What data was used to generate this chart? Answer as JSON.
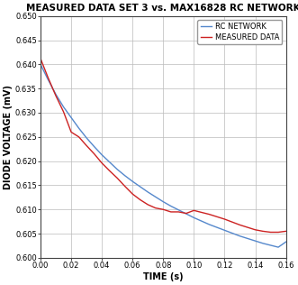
{
  "title": "MEASURED DATA SET 3 vs. MAX16828 RC NETWORK",
  "xlabel": "TIME (s)",
  "ylabel": "DIODE VOLTAGE (mV)",
  "xlim": [
    0,
    0.16
  ],
  "ylim": [
    0.6,
    0.65
  ],
  "xticks": [
    0.0,
    0.02,
    0.04,
    0.06,
    0.08,
    0.1,
    0.12,
    0.14,
    0.16
  ],
  "yticks": [
    0.6,
    0.605,
    0.61,
    0.615,
    0.62,
    0.625,
    0.63,
    0.635,
    0.64,
    0.645,
    0.65
  ],
  "rc_network_color": "#5588cc",
  "measured_data_color": "#cc2222",
  "legend_labels": [
    "RC NETWORK",
    "MEASURED DATA"
  ],
  "background_color": "#ffffff",
  "grid_color": "#bbbbbb",
  "rc_network": {
    "x": [
      0.0,
      0.005,
      0.01,
      0.015,
      0.02,
      0.025,
      0.03,
      0.035,
      0.04,
      0.045,
      0.05,
      0.055,
      0.06,
      0.065,
      0.07,
      0.075,
      0.08,
      0.085,
      0.09,
      0.095,
      0.1,
      0.105,
      0.11,
      0.115,
      0.12,
      0.125,
      0.13,
      0.135,
      0.14,
      0.145,
      0.15,
      0.155,
      0.16
    ],
    "y": [
      0.64,
      0.6368,
      0.6338,
      0.6312,
      0.629,
      0.6268,
      0.6248,
      0.623,
      0.6213,
      0.6198,
      0.6183,
      0.617,
      0.6158,
      0.6147,
      0.6136,
      0.6126,
      0.6116,
      0.6107,
      0.6099,
      0.6091,
      0.6083,
      0.6076,
      0.6069,
      0.6063,
      0.6057,
      0.6051,
      0.6045,
      0.604,
      0.6035,
      0.603,
      0.6026,
      0.6022,
      0.6033
    ]
  },
  "measured_data": {
    "x": [
      0.0,
      0.005,
      0.01,
      0.015,
      0.02,
      0.025,
      0.03,
      0.035,
      0.04,
      0.045,
      0.05,
      0.055,
      0.06,
      0.065,
      0.07,
      0.075,
      0.08,
      0.085,
      0.09,
      0.095,
      0.1,
      0.105,
      0.11,
      0.115,
      0.12,
      0.125,
      0.13,
      0.135,
      0.14,
      0.145,
      0.15,
      0.155,
      0.16
    ],
    "y": [
      0.6412,
      0.6372,
      0.6335,
      0.6302,
      0.626,
      0.625,
      0.6232,
      0.6215,
      0.6196,
      0.618,
      0.6165,
      0.6148,
      0.6132,
      0.612,
      0.611,
      0.6103,
      0.61,
      0.6095,
      0.6095,
      0.6092,
      0.6098,
      0.6094,
      0.609,
      0.6085,
      0.608,
      0.6074,
      0.6068,
      0.6063,
      0.6058,
      0.6055,
      0.6053,
      0.6053,
      0.6055
    ]
  },
  "figsize": [
    3.31,
    3.16
  ],
  "dpi": 100
}
